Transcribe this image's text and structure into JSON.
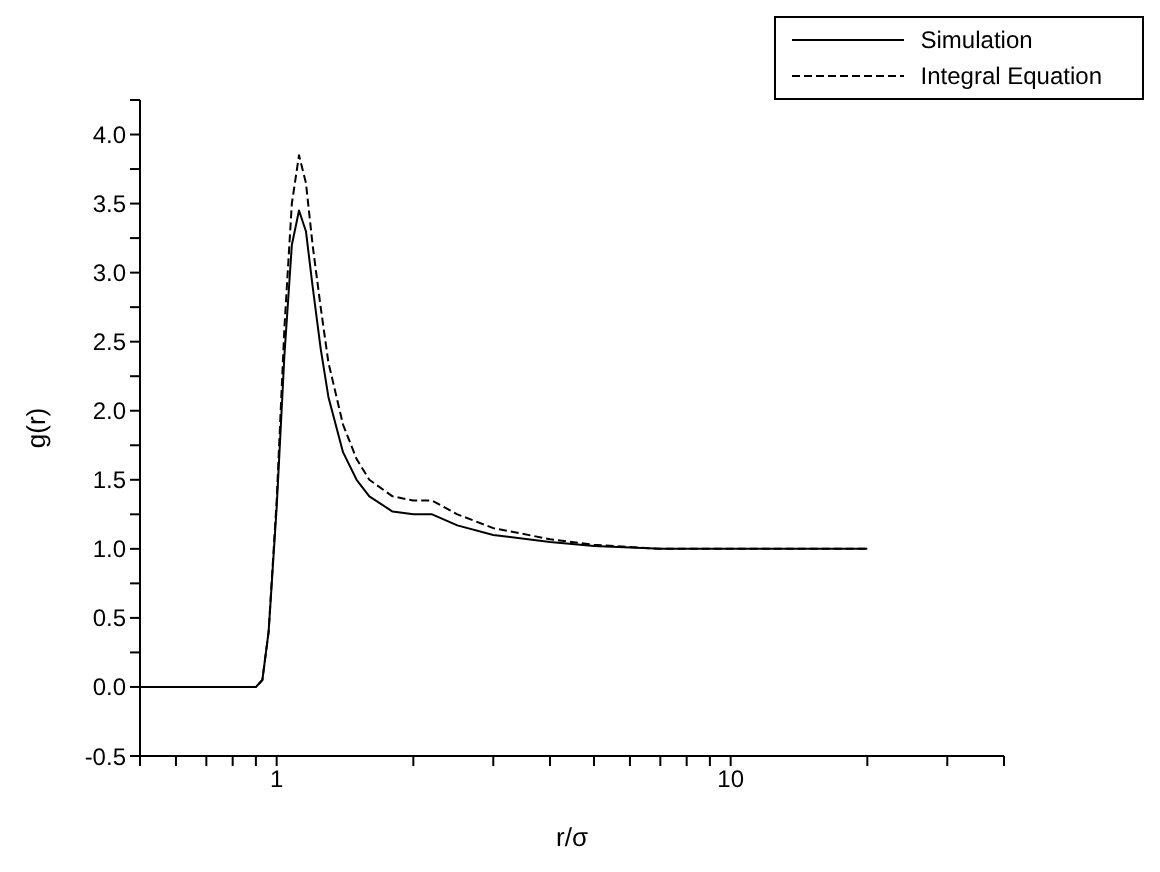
{
  "chart_data": {
    "type": "line",
    "xlabel": "r/σ",
    "ylabel": "g(r)",
    "log": "x",
    "x": [
      0.5,
      0.9,
      0.93,
      0.96,
      1.0,
      1.04,
      1.08,
      1.12,
      1.16,
      1.2,
      1.25,
      1.3,
      1.4,
      1.5,
      1.6,
      1.8,
      2.0,
      2.2,
      2.5,
      3,
      4,
      5,
      7,
      10,
      20
    ],
    "series": [
      {
        "name": "Simulation",
        "color": "#000000",
        "line_style": "solid",
        "values": [
          0,
          0,
          0.05,
          0.4,
          1.3,
          2.4,
          3.2,
          3.45,
          3.3,
          2.9,
          2.45,
          2.1,
          1.7,
          1.5,
          1.38,
          1.27,
          1.25,
          1.25,
          1.17,
          1.1,
          1.05,
          1.02,
          1.0,
          1.0,
          1.0
        ]
      },
      {
        "name": "Integral Equation",
        "color": "#000000",
        "line_style": "dashed",
        "values": [
          0,
          0,
          0.05,
          0.4,
          1.35,
          2.6,
          3.5,
          3.85,
          3.65,
          3.2,
          2.75,
          2.35,
          1.9,
          1.65,
          1.5,
          1.38,
          1.35,
          1.35,
          1.25,
          1.15,
          1.07,
          1.03,
          1.0,
          1.0,
          1.0
        ]
      }
    ],
    "xlim": [
      0.5,
      40
    ],
    "xticks": [
      {
        "value": 0.5,
        "label": null
      },
      {
        "value": 0.6,
        "label": null
      },
      {
        "value": 0.7,
        "label": null
      },
      {
        "value": 0.8,
        "label": null
      },
      {
        "value": 0.9,
        "label": null
      },
      {
        "value": 1,
        "label": "1"
      },
      {
        "value": 2,
        "label": null
      },
      {
        "value": 3,
        "label": null
      },
      {
        "value": 4,
        "label": null
      },
      {
        "value": 5,
        "label": null
      },
      {
        "value": 6,
        "label": null
      },
      {
        "value": 7,
        "label": null
      },
      {
        "value": 8,
        "label": null
      },
      {
        "value": 9,
        "label": null
      },
      {
        "value": 10,
        "label": "10"
      },
      {
        "value": 20,
        "label": null
      },
      {
        "value": 30,
        "label": null
      },
      {
        "value": 40,
        "label": null
      }
    ],
    "ylim": [
      -0.5,
      4.25
    ],
    "yticks": [
      {
        "value": -0.5,
        "label": "-0.5"
      },
      {
        "value": 0,
        "label": "0.0"
      },
      {
        "value": 0.25,
        "label": null
      },
      {
        "value": 0.5,
        "label": "0.5"
      },
      {
        "value": 0.75,
        "label": null
      },
      {
        "value": 1,
        "label": "1.0"
      },
      {
        "value": 1.25,
        "label": null
      },
      {
        "value": 1.5,
        "label": "1.5"
      },
      {
        "value": 1.75,
        "label": null
      },
      {
        "value": 2,
        "label": "2.0"
      },
      {
        "value": 2.25,
        "label": null
      },
      {
        "value": 2.5,
        "label": "2.5"
      },
      {
        "value": 2.75,
        "label": null
      },
      {
        "value": 3,
        "label": "3.0"
      },
      {
        "value": 3.25,
        "label": null
      },
      {
        "value": 3.5,
        "label": "3.5"
      },
      {
        "value": 3.75,
        "label": null
      },
      {
        "value": 4,
        "label": "4.0"
      },
      {
        "value": 4.25,
        "label": null
      }
    ],
    "grid": false,
    "legend": "top right",
    "marker": "none"
  }
}
